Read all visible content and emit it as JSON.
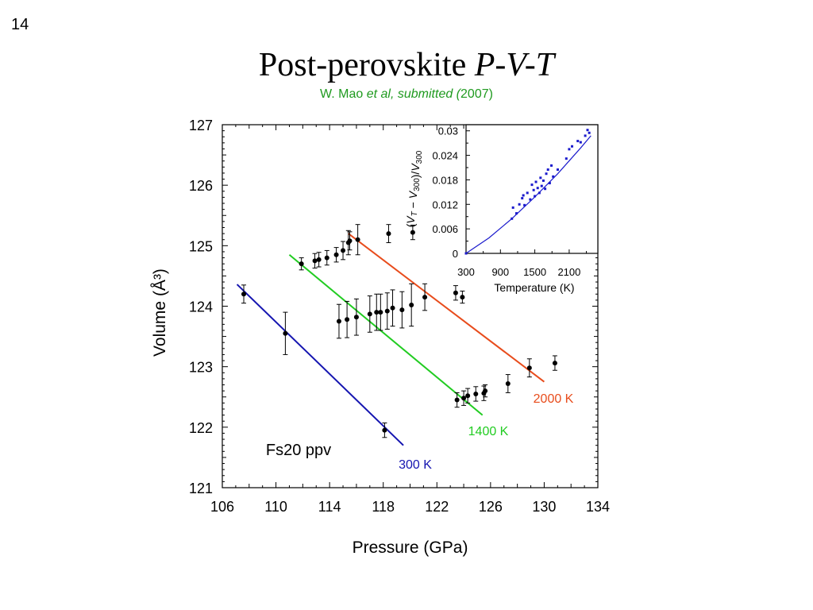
{
  "slide": {
    "number": "14",
    "title_main": "Post-perovskite ",
    "title_italic": "P-V-T",
    "subtitle_author": "W. Mao ",
    "subtitle_italic": "et al, submitted (",
    "subtitle_year": "2007)"
  },
  "colors": {
    "300K": "#1515b0",
    "1400K": "#22cc22",
    "2000K": "#e84c1c",
    "inset": "#1a1acc",
    "data": "#000000"
  },
  "chart_data": [
    {
      "type": "scatter",
      "xlabel": "Pressure (GPa)",
      "ylabel": "Volume (Å³)",
      "xlim": [
        106,
        134
      ],
      "ylim": [
        121,
        127
      ],
      "xticks": [
        106,
        110,
        114,
        118,
        122,
        126,
        130,
        134
      ],
      "yticks": [
        121,
        122,
        123,
        124,
        125,
        126,
        127
      ],
      "annotation": "Fs20 ppv",
      "points": [
        {
          "x": 107.6,
          "y": 124.2,
          "err": 0.15
        },
        {
          "x": 110.7,
          "y": 123.55,
          "err": 0.35
        },
        {
          "x": 118.1,
          "y": 121.95,
          "err": 0.12
        },
        {
          "x": 111.9,
          "y": 124.7,
          "err": 0.1
        },
        {
          "x": 112.9,
          "y": 124.75,
          "err": 0.12
        },
        {
          "x": 113.2,
          "y": 124.77,
          "err": 0.12
        },
        {
          "x": 113.8,
          "y": 124.8,
          "err": 0.12
        },
        {
          "x": 114.5,
          "y": 124.85,
          "err": 0.12
        },
        {
          "x": 115.0,
          "y": 124.92,
          "err": 0.15
        },
        {
          "x": 115.4,
          "y": 125.05,
          "err": 0.2
        },
        {
          "x": 115.5,
          "y": 125.08,
          "err": 0.15
        },
        {
          "x": 116.1,
          "y": 125.1,
          "err": 0.25
        },
        {
          "x": 118.4,
          "y": 125.2,
          "err": 0.15
        },
        {
          "x": 120.2,
          "y": 125.22,
          "err": 0.12
        },
        {
          "x": 114.7,
          "y": 123.75,
          "err": 0.28
        },
        {
          "x": 115.3,
          "y": 123.78,
          "err": 0.3
        },
        {
          "x": 116.0,
          "y": 123.82,
          "err": 0.3
        },
        {
          "x": 117.0,
          "y": 123.87,
          "err": 0.3
        },
        {
          "x": 117.5,
          "y": 123.9,
          "err": 0.3
        },
        {
          "x": 117.8,
          "y": 123.9,
          "err": 0.3
        },
        {
          "x": 118.3,
          "y": 123.92,
          "err": 0.3
        },
        {
          "x": 118.7,
          "y": 123.97,
          "err": 0.3
        },
        {
          "x": 119.4,
          "y": 123.94,
          "err": 0.3
        },
        {
          "x": 120.1,
          "y": 124.02,
          "err": 0.35
        },
        {
          "x": 121.1,
          "y": 124.15,
          "err": 0.22
        },
        {
          "x": 123.4,
          "y": 124.22,
          "err": 0.12
        },
        {
          "x": 123.9,
          "y": 124.15,
          "err": 0.1
        },
        {
          "x": 123.5,
          "y": 122.45,
          "err": 0.12
        },
        {
          "x": 124.0,
          "y": 122.48,
          "err": 0.12
        },
        {
          "x": 124.3,
          "y": 122.52,
          "err": 0.12
        },
        {
          "x": 124.9,
          "y": 122.55,
          "err": 0.12
        },
        {
          "x": 125.5,
          "y": 122.56,
          "err": 0.12
        },
        {
          "x": 125.6,
          "y": 122.6,
          "err": 0.1
        },
        {
          "x": 127.3,
          "y": 122.72,
          "err": 0.15
        },
        {
          "x": 128.9,
          "y": 122.98,
          "err": 0.15
        },
        {
          "x": 130.8,
          "y": 123.06,
          "err": 0.12
        }
      ],
      "series": [
        {
          "name": "300 K",
          "x": [
            107.1,
            119.5
          ],
          "y": [
            124.36,
            121.7
          ]
        },
        {
          "name": "1400 K",
          "x": [
            111.0,
            125.4
          ],
          "y": [
            124.85,
            122.2
          ]
        },
        {
          "name": "2000 K",
          "x": [
            115.4,
            130.0
          ],
          "y": [
            125.2,
            122.75
          ]
        }
      ]
    },
    {
      "type": "scatter",
      "xlabel": "Temperature (K)",
      "ylabel": "(V_T − V_300)/V_300",
      "xlim": [
        300,
        2600
      ],
      "ylim": [
        0,
        0.0315
      ],
      "xticks": [
        300,
        900,
        1500,
        2100
      ],
      "xticklabels": [
        "300",
        "900",
        "1500",
        "2100"
      ],
      "yticks": [
        0,
        0.006,
        0.012,
        0.018,
        0.024,
        0.03
      ],
      "yticklabels": [
        "0",
        "0.006",
        "0.012",
        "0.018",
        "0.024",
        "0.03"
      ],
      "points": [
        {
          "x": 300,
          "y": 0.0
        },
        {
          "x": 1100,
          "y": 0.0085
        },
        {
          "x": 1120,
          "y": 0.0112
        },
        {
          "x": 1180,
          "y": 0.0098
        },
        {
          "x": 1230,
          "y": 0.012
        },
        {
          "x": 1280,
          "y": 0.0135
        },
        {
          "x": 1300,
          "y": 0.0142
        },
        {
          "x": 1320,
          "y": 0.0118
        },
        {
          "x": 1370,
          "y": 0.0148
        },
        {
          "x": 1420,
          "y": 0.0132
        },
        {
          "x": 1450,
          "y": 0.0168
        },
        {
          "x": 1480,
          "y": 0.0155
        },
        {
          "x": 1500,
          "y": 0.014
        },
        {
          "x": 1520,
          "y": 0.0175
        },
        {
          "x": 1550,
          "y": 0.016
        },
        {
          "x": 1580,
          "y": 0.0148
        },
        {
          "x": 1600,
          "y": 0.0185
        },
        {
          "x": 1620,
          "y": 0.0165
        },
        {
          "x": 1650,
          "y": 0.0178
        },
        {
          "x": 1680,
          "y": 0.0158
        },
        {
          "x": 1700,
          "y": 0.0195
        },
        {
          "x": 1730,
          "y": 0.0205
        },
        {
          "x": 1760,
          "y": 0.0172
        },
        {
          "x": 1790,
          "y": 0.0215
        },
        {
          "x": 1820,
          "y": 0.0188
        },
        {
          "x": 1900,
          "y": 0.0205
        },
        {
          "x": 2050,
          "y": 0.0232
        },
        {
          "x": 2100,
          "y": 0.0255
        },
        {
          "x": 2150,
          "y": 0.0262
        },
        {
          "x": 2250,
          "y": 0.0275
        },
        {
          "x": 2300,
          "y": 0.0272
        },
        {
          "x": 2380,
          "y": 0.0288
        },
        {
          "x": 2420,
          "y": 0.0302
        },
        {
          "x": 2450,
          "y": 0.0295
        }
      ],
      "fit": {
        "x": [
          300,
          700,
          1100,
          1500,
          1900,
          2300,
          2480
        ],
        "y": [
          0.0,
          0.0038,
          0.0085,
          0.0138,
          0.0195,
          0.0258,
          0.0288
        ]
      }
    }
  ]
}
